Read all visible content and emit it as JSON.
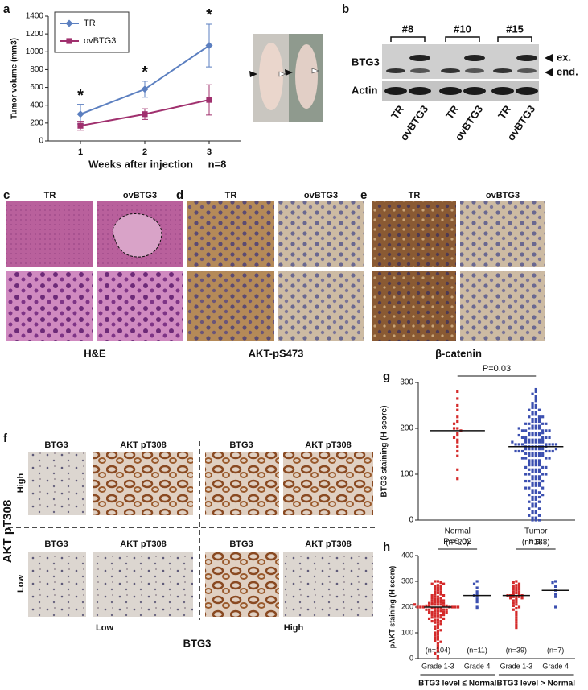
{
  "figure": {
    "labels": [
      "a",
      "b",
      "c",
      "d",
      "e",
      "f",
      "g",
      "h"
    ]
  },
  "blot": {
    "clones": [
      "#8",
      "#10",
      "#15"
    ],
    "rows": [
      "BTG3",
      "Actin"
    ],
    "bands": [
      "ex.",
      "end."
    ],
    "lanes": [
      "TR",
      "ovBTG3",
      "TR",
      "ovBTG3",
      "TR",
      "ovBTG3"
    ]
  },
  "histology": {
    "columns": [
      "TR",
      "ovBTG3"
    ],
    "stains": [
      "H&E",
      "AKT-pS473",
      "β-catenin"
    ]
  },
  "panel_f": {
    "columns": [
      "BTG3",
      "AKT pT308",
      "BTG3",
      "AKT pT308"
    ],
    "rows": [
      "High",
      "Low"
    ],
    "row_axis": "AKT pT308",
    "col_groups": [
      "Low",
      "High"
    ],
    "col_axis": "BTG3"
  },
  "chart_data": [
    {
      "type": "line",
      "ylabel": "Tumor volume (mm3)",
      "xlabel": "Weeks after injection",
      "note": "n=8",
      "categories": [
        "1",
        "2",
        "3"
      ],
      "annotations": [
        "*",
        "*",
        "*"
      ],
      "legend": "upper left",
      "ylim": [
        0,
        1400
      ],
      "yticks": [
        0,
        200,
        400,
        600,
        800,
        1000,
        1200,
        1400
      ],
      "series": [
        {
          "name": "TR",
          "color": "#5b7fc0",
          "marker": "diamond",
          "values": [
            300,
            580,
            1070
          ],
          "errors": [
            110,
            90,
            240
          ]
        },
        {
          "name": "ovBTG3",
          "color": "#a0306e",
          "marker": "square",
          "values": [
            170,
            300,
            460
          ],
          "errors": [
            50,
            60,
            170
          ]
        }
      ]
    },
    {
      "type": "dotplot",
      "ylabel": "BTG3 staining (H score)",
      "ylim": [
        0,
        300
      ],
      "yticks": [
        0,
        100,
        200,
        300
      ],
      "comparisons": [
        "P=0.03"
      ],
      "series": [
        {
          "name": "Normal",
          "n_label": "(n=20)",
          "color": "#d42a2a",
          "median": 195,
          "values": [
            280,
            265,
            250,
            240,
            225,
            215,
            210,
            200,
            200,
            195,
            190,
            185,
            180,
            175,
            170,
            160,
            150,
            140,
            110,
            90
          ]
        },
        {
          "name": "Tumor",
          "n_label": "(n=188)",
          "color": "#3b4fb0",
          "median": 160,
          "values": [
            285,
            280,
            275,
            270,
            265,
            260,
            255,
            250,
            250,
            245,
            245,
            240,
            240,
            235,
            235,
            230,
            230,
            225,
            225,
            225,
            220,
            220,
            220,
            215,
            215,
            215,
            210,
            210,
            210,
            205,
            205,
            205,
            200,
            200,
            200,
            200,
            195,
            195,
            195,
            195,
            190,
            190,
            190,
            190,
            185,
            185,
            185,
            185,
            180,
            180,
            180,
            180,
            180,
            175,
            175,
            175,
            175,
            175,
            170,
            170,
            170,
            170,
            170,
            170,
            165,
            165,
            165,
            165,
            165,
            165,
            160,
            160,
            160,
            160,
            160,
            160,
            160,
            155,
            155,
            155,
            155,
            155,
            155,
            150,
            150,
            150,
            150,
            150,
            150,
            145,
            145,
            145,
            145,
            145,
            140,
            140,
            140,
            140,
            140,
            135,
            135,
            135,
            135,
            130,
            130,
            130,
            130,
            125,
            125,
            125,
            125,
            120,
            120,
            120,
            120,
            115,
            115,
            115,
            110,
            110,
            110,
            110,
            105,
            105,
            105,
            100,
            100,
            100,
            100,
            95,
            95,
            95,
            90,
            90,
            90,
            85,
            85,
            85,
            80,
            80,
            80,
            75,
            75,
            75,
            70,
            70,
            70,
            65,
            65,
            60,
            60,
            60,
            55,
            55,
            50,
            50,
            50,
            45,
            45,
            40,
            40,
            35,
            35,
            30,
            30,
            25,
            25,
            20,
            20,
            15,
            15,
            10,
            10,
            5,
            5,
            0,
            0,
            0,
            195,
            185,
            175,
            165,
            155,
            145,
            210,
            200,
            190,
            170
          ]
        }
      ]
    },
    {
      "type": "dotplot",
      "ylabel": "pAKT staining (H score)",
      "ylim": [
        0,
        400
      ],
      "yticks": [
        0,
        100,
        200,
        300,
        400
      ],
      "comparisons": [
        "P=0.02",
        "n.s."
      ],
      "group_labels": [
        "BTG3 level ≤ Normal",
        "BTG3 level > Normal"
      ],
      "series": [
        {
          "name": "Grade 1-3",
          "n_label": "(n=104)",
          "color": "#d42a2a",
          "median": 200,
          "values": [
            300,
            300,
            295,
            290,
            290,
            285,
            280,
            280,
            275,
            270,
            270,
            265,
            260,
            260,
            255,
            250,
            250,
            245,
            245,
            240,
            240,
            235,
            235,
            230,
            230,
            225,
            225,
            225,
            220,
            220,
            220,
            215,
            215,
            215,
            210,
            210,
            210,
            210,
            205,
            205,
            205,
            205,
            200,
            200,
            200,
            200,
            200,
            200,
            195,
            195,
            195,
            195,
            190,
            190,
            190,
            185,
            185,
            185,
            180,
            180,
            180,
            175,
            175,
            170,
            170,
            165,
            165,
            160,
            160,
            155,
            155,
            150,
            150,
            145,
            145,
            140,
            140,
            135,
            130,
            125,
            120,
            115,
            110,
            105,
            100,
            95,
            90,
            85,
            80,
            75,
            70,
            65,
            60,
            50,
            40,
            30,
            20,
            10,
            0,
            190,
            200,
            210,
            180,
            170
          ]
        },
        {
          "name": "Grade 4",
          "n_label": "(n=11)",
          "color": "#3b4fb0",
          "median": 245,
          "values": [
            300,
            290,
            275,
            260,
            250,
            245,
            240,
            230,
            220,
            200,
            195
          ]
        },
        {
          "name": "Grade 1-3",
          "n_label": "(n=39)",
          "color": "#d42a2a",
          "median": 245,
          "values": [
            300,
            295,
            290,
            285,
            280,
            280,
            275,
            270,
            270,
            265,
            260,
            260,
            255,
            250,
            250,
            245,
            245,
            245,
            240,
            240,
            240,
            235,
            235,
            230,
            225,
            220,
            215,
            210,
            205,
            200,
            195,
            190,
            180,
            170,
            160,
            150,
            140,
            130,
            120
          ]
        },
        {
          "name": "Grade 4",
          "n_label": "(n=7)",
          "color": "#3b4fb0",
          "median": 265,
          "values": [
            300,
            295,
            280,
            265,
            250,
            240,
            200
          ]
        }
      ]
    }
  ]
}
